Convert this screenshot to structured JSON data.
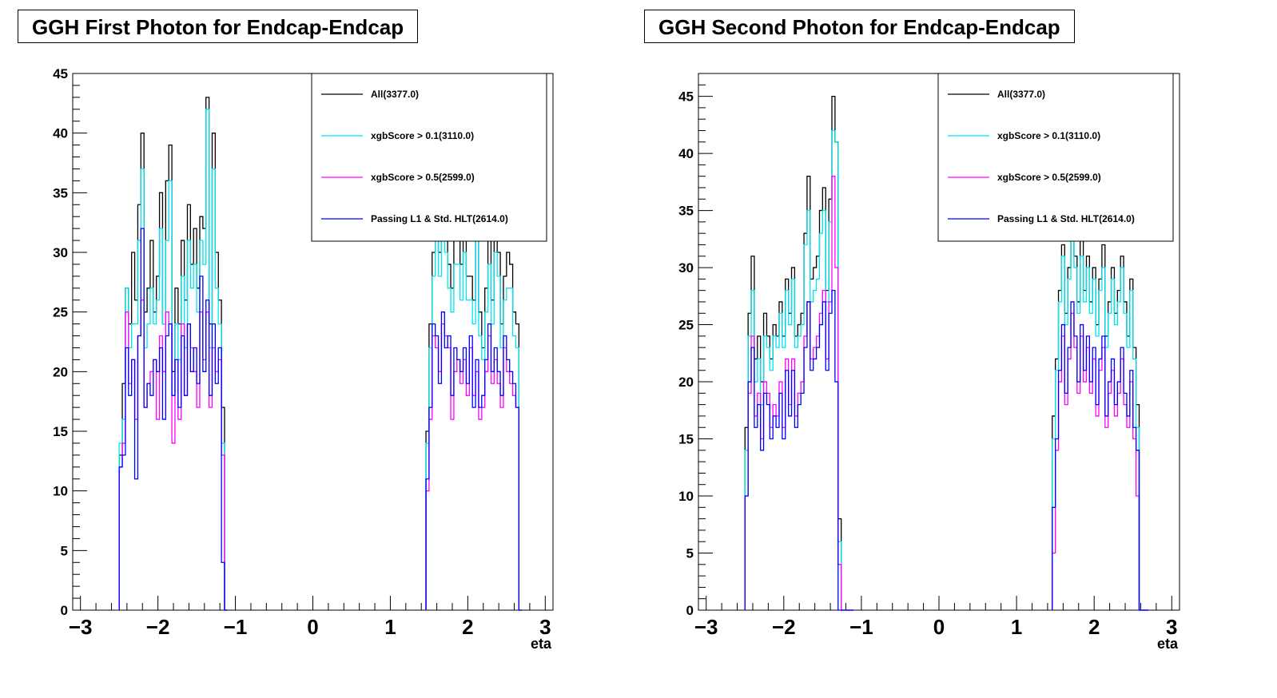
{
  "colors": {
    "all": "#000000",
    "xgb01": "#00e5ee",
    "xgb05": "#ff00ff",
    "l1hlt": "#0000ff"
  },
  "chart_data": [
    {
      "type": "histogram-step",
      "title": "GGH First Photon for Endcap-Endcap",
      "xlabel": "eta",
      "ylabel": "",
      "xlim": [
        -3.1,
        3.1
      ],
      "ylim": [
        0,
        45
      ],
      "xticks": [
        "−3",
        "−2",
        "−1",
        "0",
        "1",
        "2",
        "3"
      ],
      "yticks": [
        "0",
        "5",
        "10",
        "15",
        "20",
        "25",
        "30",
        "35",
        "40",
        "45"
      ],
      "legend_position": "top-right",
      "bin_width": 0.04,
      "bins_start": [
        -2.5,
        1.46
      ],
      "series": [
        {
          "name": "All(3377.0)",
          "color_key": "all",
          "negative": [
            13,
            19,
            27,
            24,
            30,
            26,
            34,
            40,
            25,
            27,
            31,
            25,
            28,
            35,
            24,
            36,
            39,
            20,
            27,
            24,
            31,
            26,
            34,
            29,
            32,
            27,
            33,
            32,
            43,
            24,
            40,
            30,
            26,
            17,
            0
          ],
          "positive": [
            15,
            24,
            30,
            33,
            30,
            34,
            32,
            29,
            27,
            31,
            31,
            29,
            32,
            28,
            28,
            26,
            33,
            25,
            22,
            27,
            31,
            26,
            32,
            30,
            24,
            28,
            30,
            29,
            25,
            24,
            0
          ]
        },
        {
          "name": "xgbScore > 0.1(3110.0)",
          "color_key": "xgb01",
          "negative": [
            14,
            16,
            27,
            22,
            24,
            24,
            31,
            37,
            22,
            24,
            27,
            24,
            26,
            32,
            24,
            31,
            36,
            18,
            24,
            21,
            28,
            22,
            31,
            27,
            29,
            25,
            31,
            29,
            42,
            22,
            37,
            27,
            24,
            14,
            0
          ],
          "positive": [
            14,
            22,
            28,
            31,
            28,
            31,
            30,
            27,
            25,
            29,
            29,
            26,
            30,
            26,
            26,
            24,
            31,
            23,
            21,
            25,
            29,
            24,
            30,
            28,
            22,
            26,
            27,
            27,
            23,
            22,
            0
          ]
        },
        {
          "name": "xgbScore > 0.5(2599.0)",
          "color_key": "xgb05",
          "negative": [
            12,
            14,
            25,
            19,
            21,
            16,
            23,
            26,
            17,
            19,
            20,
            21,
            16,
            23,
            20,
            25,
            24,
            14,
            21,
            16,
            24,
            18,
            24,
            22,
            20,
            17,
            25,
            21,
            25,
            17,
            22,
            20,
            21,
            13,
            0
          ],
          "positive": [
            10,
            16,
            23,
            22,
            20,
            24,
            23,
            22,
            16,
            20,
            21,
            19,
            21,
            18,
            22,
            18,
            20,
            16,
            17,
            20,
            23,
            19,
            21,
            19,
            17,
            22,
            20,
            19,
            18,
            17,
            0
          ]
        },
        {
          "name": "Passing L1 & Std. HLT(2614.0)",
          "color_key": "l1hlt",
          "negative": [
            12,
            13,
            22,
            18,
            21,
            11,
            23,
            32,
            17,
            19,
            18,
            21,
            20,
            22,
            16,
            23,
            24,
            18,
            21,
            17,
            23,
            18,
            24,
            20,
            22,
            19,
            28,
            20,
            26,
            18,
            24,
            19,
            22,
            4,
            0
          ],
          "positive": [
            11,
            17,
            24,
            23,
            19,
            25,
            22,
            23,
            18,
            22,
            21,
            20,
            22,
            19,
            23,
            17,
            21,
            17,
            18,
            21,
            24,
            20,
            22,
            20,
            18,
            23,
            21,
            20,
            19,
            17,
            0
          ]
        }
      ]
    },
    {
      "type": "histogram-step",
      "title": "GGH Second Photon for Endcap-Endcap",
      "xlabel": "eta",
      "ylabel": "",
      "xlim": [
        -3.1,
        3.1
      ],
      "ylim": [
        0,
        47
      ],
      "xticks": [
        "−3",
        "−2",
        "−1",
        "0",
        "1",
        "2",
        "3"
      ],
      "yticks": [
        "0",
        "5",
        "10",
        "15",
        "20",
        "25",
        "30",
        "35",
        "40",
        "45"
      ],
      "legend_position": "top-right",
      "bin_width": 0.04,
      "bins_start": [
        -2.5,
        1.46
      ],
      "series": [
        {
          "name": "All(3377.0)",
          "color_key": "all",
          "negative": [
            16,
            26,
            31,
            22,
            24,
            20,
            26,
            24,
            22,
            25,
            24,
            27,
            24,
            29,
            26,
            30,
            24,
            25,
            26,
            33,
            38,
            29,
            30,
            31,
            35,
            37,
            28,
            36,
            45,
            41,
            8,
            0,
            0,
            0,
            0
          ],
          "positive": [
            17,
            22,
            28,
            32,
            26,
            30,
            35,
            31,
            27,
            33,
            28,
            31,
            27,
            30,
            25,
            29,
            32,
            24,
            27,
            30,
            26,
            28,
            31,
            27,
            24,
            29,
            23,
            18,
            0,
            0,
            0
          ]
        },
        {
          "name": "xgbScore > 0.1(3110.0)",
          "color_key": "xgb01",
          "negative": [
            14,
            24,
            28,
            20,
            22,
            18,
            24,
            23,
            21,
            24,
            23,
            26,
            23,
            28,
            25,
            29,
            23,
            24,
            25,
            32,
            35,
            27,
            28,
            29,
            33,
            35,
            27,
            34,
            42,
            41,
            6,
            0,
            0,
            0,
            0
          ],
          "positive": [
            15,
            21,
            27,
            31,
            25,
            29,
            33,
            30,
            26,
            31,
            27,
            30,
            26,
            29,
            24,
            28,
            30,
            23,
            26,
            29,
            25,
            27,
            30,
            26,
            23,
            28,
            22,
            16,
            0,
            0,
            0
          ]
        },
        {
          "name": "xgbScore > 0.5(2599.0)",
          "color_key": "xgb05",
          "negative": [
            10,
            19,
            24,
            17,
            19,
            15,
            20,
            19,
            16,
            18,
            17,
            20,
            16,
            22,
            18,
            22,
            17,
            19,
            20,
            24,
            27,
            22,
            23,
            24,
            26,
            28,
            22,
            27,
            38,
            30,
            4,
            0,
            0,
            0,
            0
          ],
          "positive": [
            5,
            14,
            20,
            24,
            18,
            22,
            26,
            23,
            19,
            24,
            20,
            23,
            19,
            22,
            17,
            21,
            23,
            16,
            19,
            21,
            17,
            19,
            22,
            18,
            16,
            20,
            15,
            10,
            0,
            0,
            0
          ]
        },
        {
          "name": "Passing L1 & Std. HLT(2614.0)",
          "color_key": "l1hlt",
          "negative": [
            10,
            20,
            23,
            16,
            18,
            14,
            19,
            18,
            15,
            17,
            16,
            19,
            15,
            21,
            17,
            21,
            16,
            18,
            19,
            23,
            27,
            21,
            22,
            23,
            25,
            27,
            21,
            26,
            28,
            20,
            0,
            0,
            0,
            0,
            0
          ],
          "positive": [
            9,
            15,
            21,
            25,
            19,
            23,
            27,
            24,
            20,
            25,
            21,
            24,
            20,
            23,
            18,
            22,
            24,
            17,
            20,
            22,
            18,
            20,
            23,
            19,
            17,
            21,
            16,
            14,
            0,
            0,
            0
          ]
        }
      ]
    }
  ]
}
